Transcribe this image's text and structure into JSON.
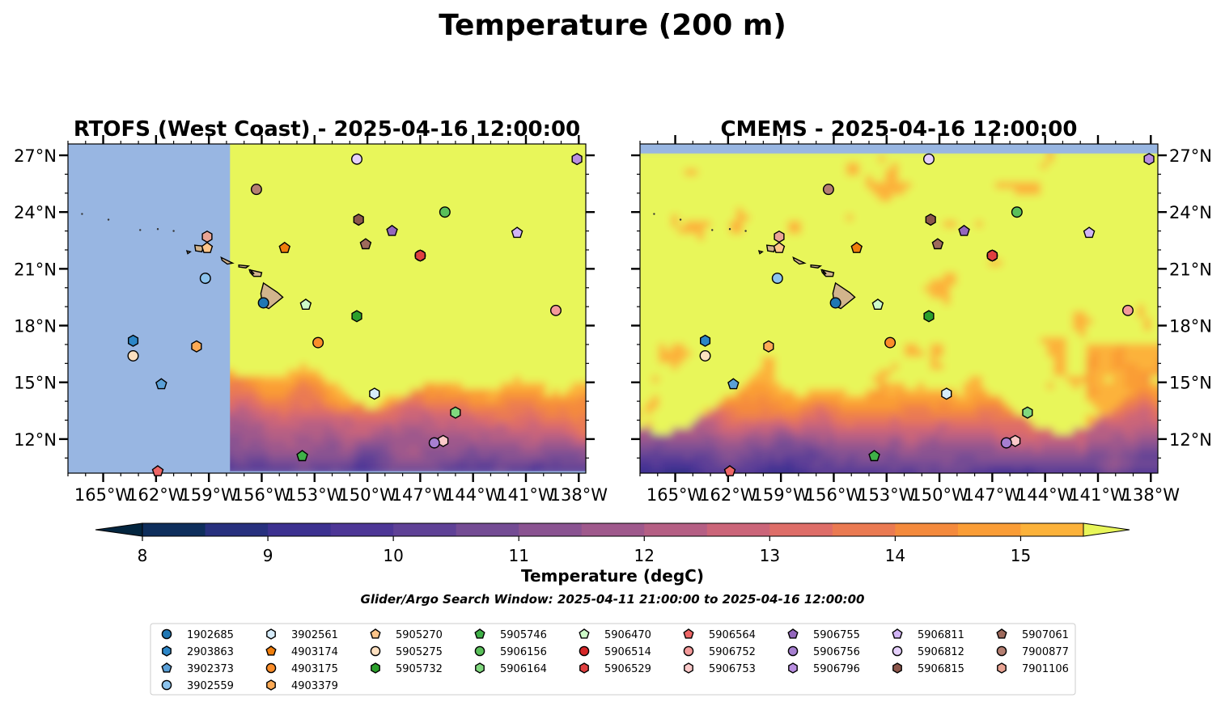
{
  "figure": {
    "title": "Temperature (200 m)",
    "search_window": "Glider/Argo Search Window: 2025-04-11 21:00:00 to 2025-04-16 12:00:00"
  },
  "colors": {
    "land": "#d2b48c",
    "nodata": "#98b6e2",
    "ramp": [
      "#03253f",
      "#0e2e5c",
      "#27307e",
      "#3c3190",
      "#4d3696",
      "#5f4196",
      "#744c94",
      "#8a5391",
      "#9f598c",
      "#b55f84",
      "#cb6579",
      "#de6d68",
      "#ea7a52",
      "#f48a3d",
      "#fa9d36",
      "#fcb23a",
      "#f9c740",
      "#f3dd4a",
      "#e8f65a"
    ]
  },
  "colorbar": {
    "label": "Temperature (degC)",
    "min": 7.6,
    "max": 15.9,
    "levels": [
      8.0,
      8.5,
      9.0,
      9.5,
      10.0,
      10.5,
      11.0,
      11.5,
      12.0,
      12.5,
      13.0,
      13.5,
      14.0,
      14.5,
      15.0,
      15.5
    ],
    "ticks": [
      "8",
      "9",
      "10",
      "11",
      "12",
      "13",
      "14",
      "15"
    ],
    "tick_values": [
      8,
      9,
      10,
      11,
      12,
      13,
      14,
      15
    ],
    "extend": "both"
  },
  "chart_data": [
    {
      "type": "heatmap",
      "panel": "left",
      "title": "RTOFS (West Coast) - 2025-04-16 12:00:00",
      "xlim": [
        -167,
        -137.6
      ],
      "ylim": [
        10.2,
        27.6
      ],
      "model_west_edge_lon": -157.8,
      "x_ticks": [
        "165°W",
        "162°W",
        "159°W",
        "156°W",
        "153°W",
        "150°W",
        "147°W",
        "144°W",
        "141°W",
        "138°W"
      ],
      "x_tick_values": [
        -165,
        -162,
        -159,
        -156,
        -153,
        -150,
        -147,
        -144,
        -141,
        -138
      ],
      "y_ticks": [
        "12°N",
        "15°N",
        "18°N",
        "21°N",
        "24°N",
        "27°N"
      ],
      "y_tick_values": [
        12,
        15,
        18,
        21,
        24,
        27
      ],
      "y_tick_side": "left"
    },
    {
      "type": "heatmap",
      "panel": "right",
      "title": "CMEMS - 2025-04-16 12:00:00",
      "xlim": [
        -167,
        -137.6
      ],
      "ylim": [
        10.2,
        27.6
      ],
      "model_north_edge_lat": 27.1,
      "x_ticks": [
        "165°W",
        "162°W",
        "159°W",
        "156°W",
        "153°W",
        "150°W",
        "147°W",
        "144°W",
        "141°W",
        "138°W"
      ],
      "x_tick_values": [
        -165,
        -162,
        -159,
        -156,
        -153,
        -150,
        -147,
        -144,
        -141,
        -138
      ],
      "y_ticks": [
        "12°N",
        "15°N",
        "18°N",
        "21°N",
        "24°N",
        "27°N"
      ],
      "y_tick_values": [
        12,
        15,
        18,
        21,
        24,
        27
      ],
      "y_tick_side": "right"
    }
  ],
  "floats": [
    {
      "id": "1902685",
      "marker": "circle",
      "color": "#1f77b4",
      "lon": -155.9,
      "lat": 19.2
    },
    {
      "id": "2903863",
      "marker": "hexagon",
      "color": "#2c86c7",
      "lon": -163.3,
      "lat": 17.2
    },
    {
      "id": "3902373",
      "marker": "pentagon",
      "color": "#5aa0d8",
      "lon": -161.7,
      "lat": 14.9
    },
    {
      "id": "3902559",
      "marker": "circle",
      "color": "#8cc4ee",
      "lon": -159.2,
      "lat": 20.5
    },
    {
      "id": "3902561",
      "marker": "hexagon",
      "color": "#d6ecfb",
      "lon": -149.6,
      "lat": 14.4
    },
    {
      "id": "4903174",
      "marker": "pentagon",
      "color": "#f07e0c",
      "lon": -154.7,
      "lat": 22.1
    },
    {
      "id": "4903175",
      "marker": "circle",
      "color": "#fb8d2a",
      "lon": -152.8,
      "lat": 17.1
    },
    {
      "id": "4903379",
      "marker": "hexagon",
      "color": "#fdaa55",
      "lon": -159.7,
      "lat": 16.9
    },
    {
      "id": "5905270",
      "marker": "pentagon",
      "color": "#fdc58a",
      "lon": -159.1,
      "lat": 22.1
    },
    {
      "id": "5905275",
      "marker": "circle",
      "color": "#fde0c0",
      "lon": -163.3,
      "lat": 16.4
    },
    {
      "id": "5905732",
      "marker": "hexagon",
      "color": "#2ca02c",
      "lon": -150.6,
      "lat": 18.5
    },
    {
      "id": "5905746",
      "marker": "pentagon",
      "color": "#3fb048",
      "lon": -153.7,
      "lat": 11.1
    },
    {
      "id": "5906156",
      "marker": "circle",
      "color": "#5ac05a",
      "lon": -145.6,
      "lat": 24.0
    },
    {
      "id": "5906164",
      "marker": "hexagon",
      "color": "#80d87e",
      "lon": -145.0,
      "lat": 13.4
    },
    {
      "id": "5906470",
      "marker": "pentagon",
      "color": "#cdfbc8",
      "lon": -153.5,
      "lat": 19.1
    },
    {
      "id": "5906514",
      "marker": "circle",
      "color": "#d62728",
      "lon": -147.0,
      "lat": 21.7
    },
    {
      "id": "5906529",
      "marker": "hexagon",
      "color": "#e04040",
      "lon": -147.0,
      "lat": 21.7
    },
    {
      "id": "5906564",
      "marker": "pentagon",
      "color": "#ee6666",
      "lon": -161.9,
      "lat": 10.3
    },
    {
      "id": "5906752",
      "marker": "circle",
      "color": "#f49a9a",
      "lon": -139.3,
      "lat": 18.8
    },
    {
      "id": "5906753",
      "marker": "hexagon",
      "color": "#fbc9c9",
      "lon": -145.7,
      "lat": 11.9
    },
    {
      "id": "5906755",
      "marker": "pentagon",
      "color": "#9467bd",
      "lon": -148.6,
      "lat": 23.0
    },
    {
      "id": "5906756",
      "marker": "circle",
      "color": "#a67fd0",
      "lon": -146.2,
      "lat": 11.8
    },
    {
      "id": "5906796",
      "marker": "hexagon",
      "color": "#b98ee0",
      "lon": -138.1,
      "lat": 26.8
    },
    {
      "id": "5906811",
      "marker": "pentagon",
      "color": "#d1b4f5",
      "lon": -141.5,
      "lat": 22.9
    },
    {
      "id": "5906812",
      "marker": "circle",
      "color": "#e5d0fb",
      "lon": -150.6,
      "lat": 26.8
    },
    {
      "id": "5906815",
      "marker": "hexagon",
      "color": "#8c564b",
      "lon": -150.5,
      "lat": 23.6
    },
    {
      "id": "5907061",
      "marker": "pentagon",
      "color": "#9e6a5c",
      "lon": -150.1,
      "lat": 22.3
    },
    {
      "id": "7900877",
      "marker": "circle",
      "color": "#b57f72",
      "lon": -156.3,
      "lat": 25.2
    },
    {
      "id": "7901106",
      "marker": "hexagon",
      "color": "#e9a494",
      "lon": -159.1,
      "lat": 22.7
    }
  ]
}
